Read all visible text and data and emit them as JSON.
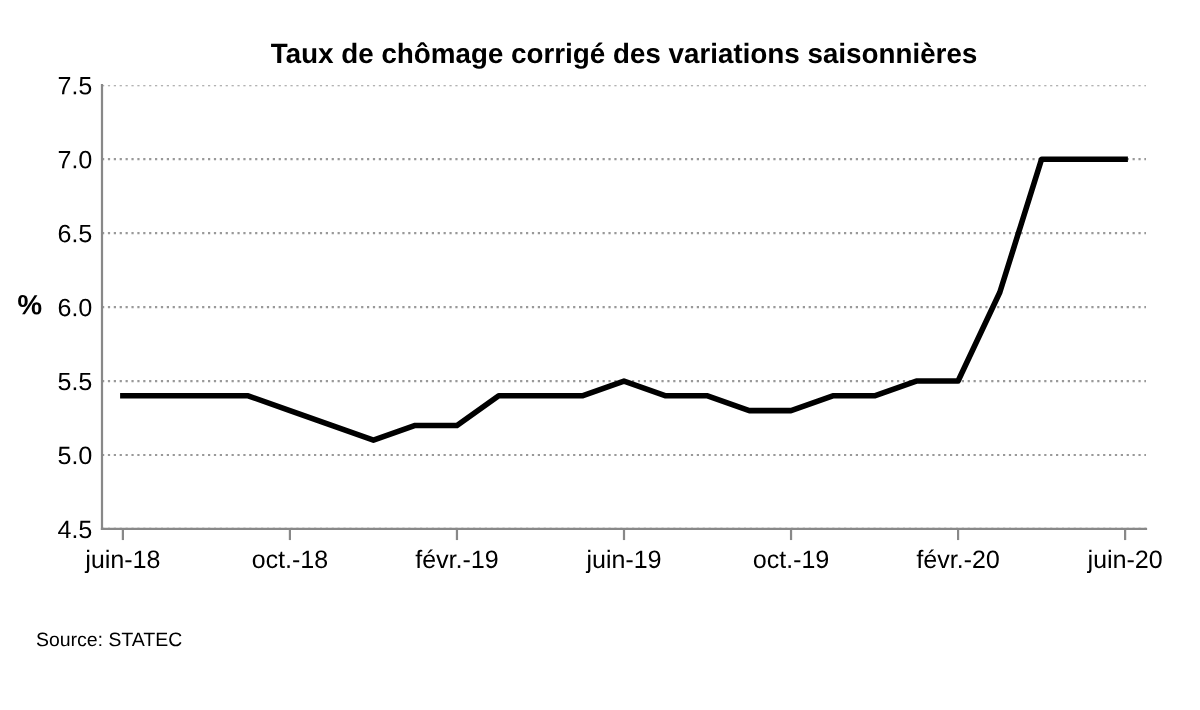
{
  "chart_data": {
    "type": "line",
    "title": "Taux de chômage corrigé des variations saisonnières",
    "ylabel": "%",
    "categories": [
      "juin-18",
      null,
      null,
      null,
      "oct.-18",
      null,
      null,
      null,
      "févr.-19",
      null,
      null,
      null,
      "juin-19",
      null,
      null,
      null,
      "oct.-19",
      null,
      null,
      null,
      "févr.-20",
      null,
      null,
      null,
      "juin-20"
    ],
    "series": [
      {
        "color": "#000000",
        "values": [
          5.4,
          5.4,
          5.4,
          5.4,
          5.3,
          5.2,
          5.1,
          5.2,
          5.2,
          5.4,
          5.4,
          5.4,
          5.5,
          5.4,
          5.4,
          5.3,
          5.3,
          5.4,
          5.4,
          5.5,
          5.5,
          6.1,
          7.0,
          7.0,
          7.0
        ]
      }
    ],
    "ylim": [
      4.5,
      7.5
    ],
    "yticks": [
      4.5,
      {
        "value": 5,
        "label": "5.0"
      },
      5.5,
      {
        "value": 6,
        "label": "6.0"
      },
      6.5,
      {
        "value": 7,
        "label": "7.0"
      },
      7.5
    ],
    "grid": "y",
    "legend": false,
    "marker": "none",
    "line_style": "solid",
    "annotations": [
      "Source: STATEC"
    ]
  }
}
